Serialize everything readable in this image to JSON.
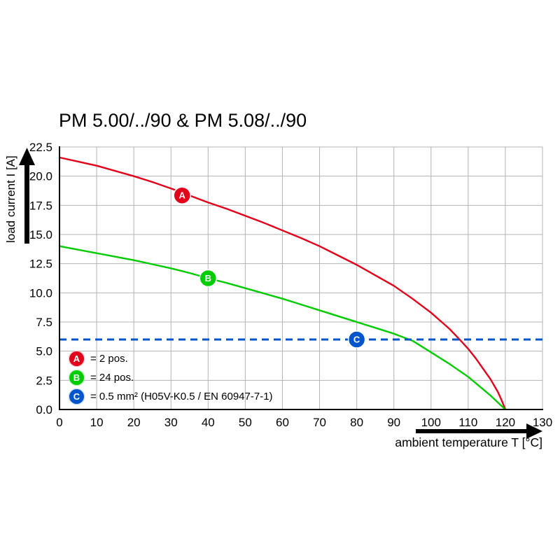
{
  "page": {
    "background_color": "#ffffff"
  },
  "header": {
    "title": "PM 5.00/../90 & PM 5.08/../90"
  },
  "chart_data": {
    "type": "line",
    "title": "PM 5.00/../90 & PM 5.08/../90",
    "xlabel": "ambient temperature T [°C]",
    "ylabel": "load current I [A]",
    "xlim": [
      0,
      130
    ],
    "ylim": [
      0,
      22.5
    ],
    "xticks": [
      0,
      10,
      20,
      30,
      40,
      50,
      60,
      70,
      80,
      90,
      100,
      110,
      120,
      130
    ],
    "xtick_labels": [
      "0",
      "10",
      "20",
      "30",
      "40",
      "50",
      "60",
      "70",
      "80",
      "90",
      "100",
      "110",
      "120",
      "130"
    ],
    "yticks": [
      0,
      2.5,
      5,
      7.5,
      10,
      12.5,
      15,
      17.5,
      20,
      22.5
    ],
    "ytick_labels": [
      "0.0",
      "2.5",
      "5.0",
      "7.5",
      "10.0",
      "12.5",
      "15.0",
      "17.5",
      "20.0",
      "22.5"
    ],
    "grid": true,
    "grid_color": "#b3b3b3",
    "axis_color": "#000000",
    "legend_position": "inside-bottom-left",
    "series": [
      {
        "name": "A",
        "label": "= 2 pos.",
        "color": "#e2001a",
        "line_style": "solid",
        "line_width": 2.4,
        "marker": {
          "x": 33,
          "y": 18.35
        },
        "points": [
          [
            0,
            21.6
          ],
          [
            5,
            21.25
          ],
          [
            10,
            20.9
          ],
          [
            15,
            20.45
          ],
          [
            20,
            20.0
          ],
          [
            25,
            19.5
          ],
          [
            30,
            18.95
          ],
          [
            35,
            18.35
          ],
          [
            40,
            17.75
          ],
          [
            45,
            17.2
          ],
          [
            50,
            16.6
          ],
          [
            55,
            16.0
          ],
          [
            60,
            15.35
          ],
          [
            65,
            14.7
          ],
          [
            70,
            14.0
          ],
          [
            75,
            13.2
          ],
          [
            80,
            12.4
          ],
          [
            85,
            11.5
          ],
          [
            90,
            10.6
          ],
          [
            95,
            9.5
          ],
          [
            100,
            8.3
          ],
          [
            105,
            6.9
          ],
          [
            108,
            5.9
          ],
          [
            110,
            5.2
          ],
          [
            112,
            4.4
          ],
          [
            114,
            3.5
          ],
          [
            116,
            2.6
          ],
          [
            118,
            1.5
          ],
          [
            119,
            0.8
          ],
          [
            120,
            0
          ]
        ]
      },
      {
        "name": "B",
        "label": "= 24 pos.",
        "color": "#00cc00",
        "line_style": "solid",
        "line_width": 2.4,
        "marker": {
          "x": 40,
          "y": 11.25
        },
        "points": [
          [
            0,
            14.0
          ],
          [
            5,
            13.7
          ],
          [
            10,
            13.4
          ],
          [
            15,
            13.1
          ],
          [
            20,
            12.8
          ],
          [
            25,
            12.45
          ],
          [
            30,
            12.1
          ],
          [
            35,
            11.7
          ],
          [
            40,
            11.25
          ],
          [
            45,
            10.85
          ],
          [
            50,
            10.4
          ],
          [
            55,
            9.95
          ],
          [
            60,
            9.5
          ],
          [
            65,
            9.0
          ],
          [
            70,
            8.5
          ],
          [
            75,
            8.0
          ],
          [
            80,
            7.5
          ],
          [
            85,
            7.0
          ],
          [
            90,
            6.5
          ],
          [
            95,
            5.9
          ],
          [
            100,
            4.9
          ],
          [
            105,
            3.9
          ],
          [
            110,
            2.8
          ],
          [
            113,
            2.0
          ],
          [
            116,
            1.2
          ],
          [
            118,
            0.6
          ],
          [
            119,
            0.3
          ],
          [
            120,
            0
          ]
        ]
      },
      {
        "name": "C",
        "label": "= 0.5 mm² (H05V-K0.5 / EN 60947-7-1)",
        "color": "#0055cc",
        "line_style": "dashed",
        "line_width": 3,
        "marker": {
          "x": 80,
          "y": 6
        },
        "points": [
          [
            0,
            6
          ],
          [
            130,
            6
          ]
        ]
      }
    ]
  }
}
